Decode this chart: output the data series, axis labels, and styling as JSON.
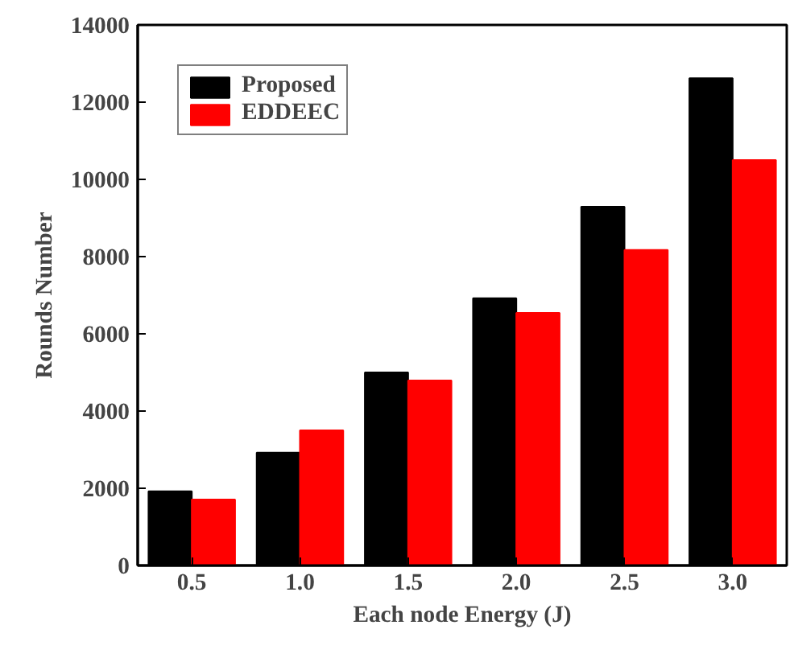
{
  "chart_data": {
    "type": "bar",
    "xlabel": "Each node Energy (J)",
    "ylabel": "Rounds Number",
    "categories": [
      "0.5",
      "1.0",
      "1.5",
      "2.0",
      "2.5",
      "3.0"
    ],
    "series": [
      {
        "name": "Proposed",
        "color": "#000000",
        "values": [
          1920,
          2920,
          5000,
          6920,
          9290,
          12620
        ]
      },
      {
        "name": "EDDEEC",
        "color": "#ff0000",
        "values": [
          1710,
          3500,
          4790,
          6540,
          8170,
          10500
        ]
      }
    ],
    "ylim": [
      0,
      14000
    ],
    "yticks": [
      0,
      2000,
      4000,
      6000,
      8000,
      10000,
      12000,
      14000
    ],
    "grid": false,
    "legend": "top left"
  }
}
